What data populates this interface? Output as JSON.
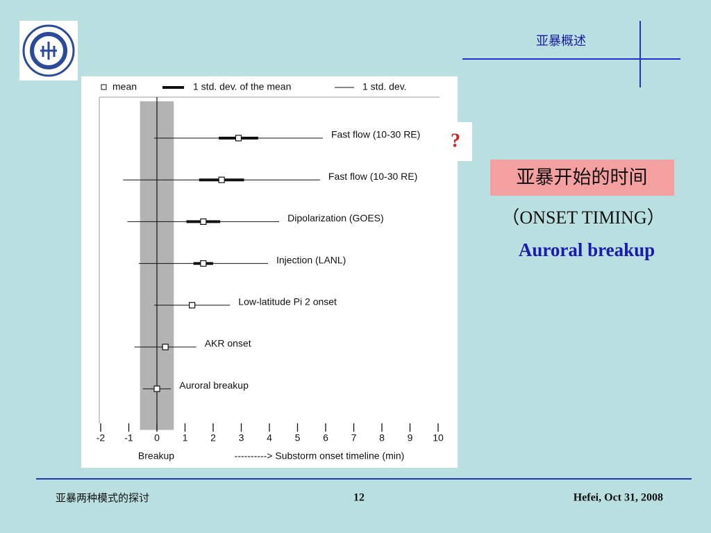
{
  "slide": {
    "header": "亚暴概述",
    "question": "?",
    "topic": "亚暴开始的时间",
    "topic_en": "（ONSET TIMING）",
    "highlight": "Auroral breakup",
    "footer_left": "亚暴两种模式的探讨",
    "footer_page": "12",
    "footer_right": "Hefei, Oct 31, 2008"
  },
  "chart_data": {
    "type": "errorbar",
    "categories": [
      "Fast flow (10-30 RE)",
      "Fast flow (10-30 RE)",
      "Dipolarization (GOES)",
      "Injection (LANL)",
      "Low-latitude Pi 2 onset",
      "AKR onset",
      "Auroral breakup"
    ],
    "series": [
      {
        "name": "mean",
        "values": [
          2.9,
          2.3,
          1.65,
          1.65,
          1.25,
          0.3,
          0
        ]
      },
      {
        "name": "1 std. dev. of the mean",
        "values": [
          0.7,
          0.8,
          0.6,
          0.35,
          0.1,
          0.1,
          0
        ]
      },
      {
        "name": "1 std. dev.",
        "values": [
          3.0,
          3.5,
          2.7,
          2.3,
          1.35,
          1.1,
          0.5
        ]
      }
    ],
    "band": [
      -0.6,
      0.6
    ],
    "xlim": [
      -2,
      10
    ],
    "xticks": [
      -2,
      -1,
      0,
      1,
      2,
      3,
      4,
      5,
      6,
      7,
      8,
      9,
      10
    ],
    "xlabel_left": "Breakup",
    "xlabel": "----------> Substorm onset timeline (min)"
  }
}
